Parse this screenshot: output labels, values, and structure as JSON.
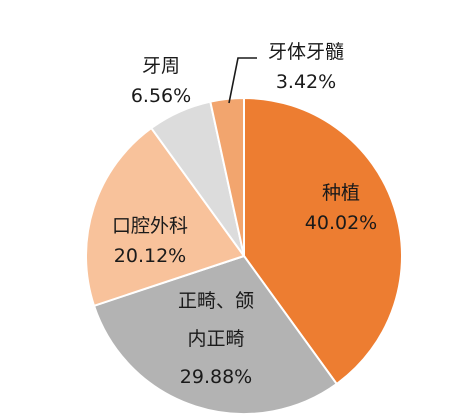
{
  "chart_data": {
    "type": "pie",
    "title": "",
    "slices": [
      {
        "label": "种植",
        "label_lines": [
          "种植"
        ],
        "value": 40.02,
        "percent_text": "40.02%",
        "color": "#ED7D31"
      },
      {
        "label": "正畸、颌内正畸",
        "label_lines": [
          "正畸、颌",
          "内正畸"
        ],
        "value": 29.88,
        "percent_text": "29.88%",
        "color": "#B3B3B3"
      },
      {
        "label": "口腔外科",
        "label_lines": [
          "口腔外科"
        ],
        "value": 20.12,
        "percent_text": "20.12%",
        "color": "#F8C29B"
      },
      {
        "label": "牙周",
        "label_lines": [
          "牙周"
        ],
        "value": 6.56,
        "percent_text": "6.56%",
        "color": "#DCDCDC"
      },
      {
        "label": "牙体牙髓",
        "label_lines": [
          "牙体牙髓"
        ],
        "value": 3.42,
        "percent_text": "3.42%",
        "color": "#F2A56E"
      }
    ],
    "start_angle_deg": 0,
    "direction": "clockwise",
    "legend": "none"
  }
}
